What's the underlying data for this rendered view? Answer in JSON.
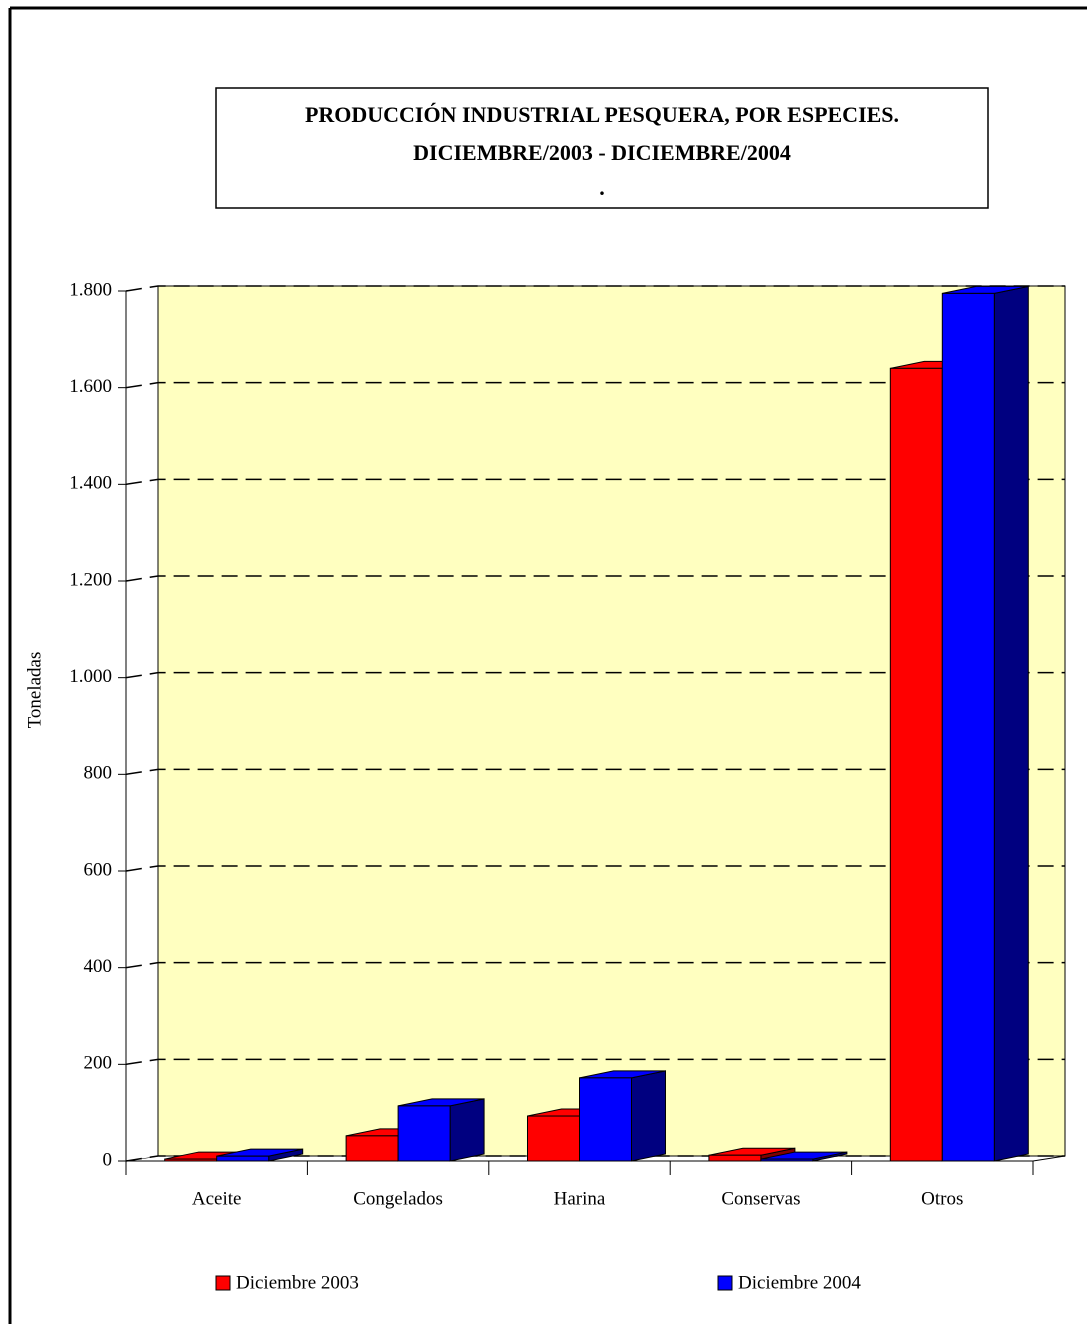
{
  "chart_data": {
    "type": "bar3d",
    "title": [
      "PRODUCCIÓN INDUSTRIAL PESQUERA, POR ESPECIES.",
      "DICIEMBRE/2003 - DICIEMBRE/2004",
      "."
    ],
    "y_label": "Toneladas",
    "categories": [
      "Aceite",
      "Congelados",
      "Harina",
      "Conservas",
      "Otros"
    ],
    "series": [
      {
        "name": "Diciembre 2003",
        "color": "#ff0000",
        "side_color": "#800000",
        "values": [
          4,
          52,
          93,
          12,
          1640
        ]
      },
      {
        "name": "Diciembre 2004",
        "color": "#0000ff",
        "side_color": "#000080",
        "values": [
          10,
          114,
          172,
          4,
          1795
        ]
      }
    ],
    "ylim": [
      0,
      1800
    ],
    "yticks": [
      0,
      200,
      400,
      600,
      800,
      {
        "value": 1000,
        "label": "1.000"
      },
      {
        "value": 1200,
        "label": "1.200"
      },
      {
        "value": 1400,
        "label": "1.400"
      },
      {
        "value": 1600,
        "label": "1.600"
      },
      {
        "value": 1800,
        "label": "1.800"
      }
    ],
    "grid": true
  }
}
